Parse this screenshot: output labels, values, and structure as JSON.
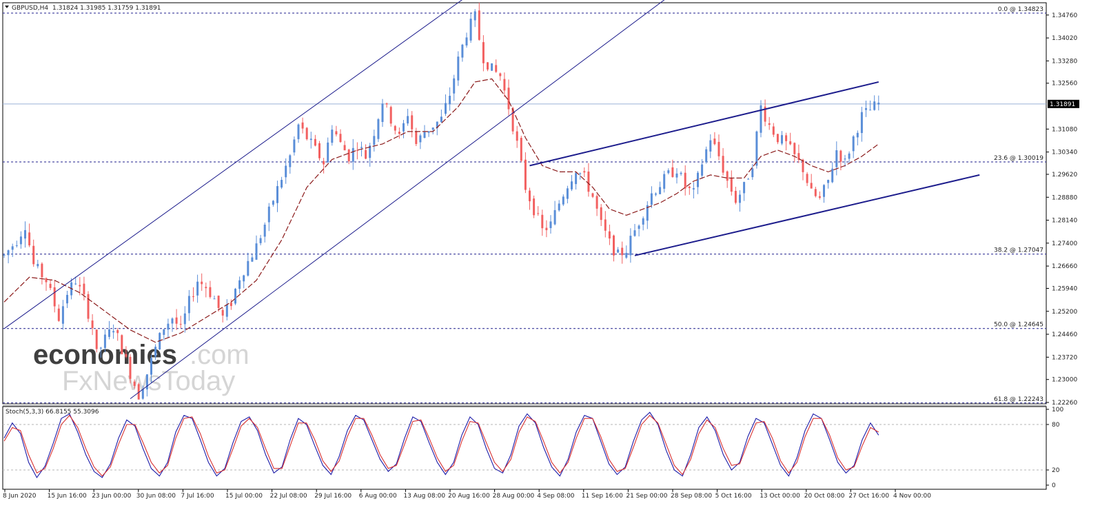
{
  "header": {
    "symbol": "GBPUSD,H4",
    "ohlc": "1.31824 1.31985 1.31759 1.31891"
  },
  "watermark": {
    "part1": "economies",
    "part2": ".com",
    "part3": "FxNewsToday",
    "accent_color": "#f5a05a"
  },
  "chart_data": [
    {
      "type": "candlestick",
      "title": "GBPUSD,H4",
      "ylim": [
        1.2226,
        1.348
      ],
      "y_ticks": [
        "1.34760",
        "1.34020",
        "1.33280",
        "1.32560",
        "1.31080",
        "1.30340",
        "1.29620",
        "1.28880",
        "1.28140",
        "1.27400",
        "1.26660",
        "1.25940",
        "1.25200",
        "1.24460",
        "1.23720",
        "1.23000",
        "1.22260"
      ],
      "x_ticks": [
        "8 Jun 2020",
        "15 Jun 16:00",
        "23 Jun 00:00",
        "30 Jun 08:00",
        "7 Jul 16:00",
        "15 Jul 00:00",
        "22 Jul 08:00",
        "29 Jul 16:00",
        "6 Aug 00:00",
        "13 Aug 08:00",
        "20 Aug 16:00",
        "28 Aug 00:00",
        "4 Sep 08:00",
        "11 Sep 16:00",
        "21 Sep 00:00",
        "28 Sep 08:00",
        "5 Oct 16:00",
        "13 Oct 00:00",
        "20 Oct 08:00",
        "27 Oct 16:00",
        "4 Nov 00:00"
      ],
      "current_price_label": "1.31891",
      "current_price": 1.31891,
      "price_path": [
        [
          0,
          1.27
        ],
        [
          3,
          1.275
        ],
        [
          5,
          1.28
        ],
        [
          7,
          1.267
        ],
        [
          10,
          1.262
        ],
        [
          13,
          1.25
        ],
        [
          15,
          1.258
        ],
        [
          17,
          1.262
        ],
        [
          19,
          1.256
        ],
        [
          21,
          1.247
        ],
        [
          22,
          1.238
        ],
        [
          24,
          1.243
        ],
        [
          26,
          1.247
        ],
        [
          28,
          1.24
        ],
        [
          30,
          1.232
        ],
        [
          32,
          1.225
        ],
        [
          34,
          1.232
        ],
        [
          36,
          1.24
        ],
        [
          38,
          1.247
        ],
        [
          40,
          1.25
        ],
        [
          42,
          1.246
        ],
        [
          44,
          1.255
        ],
        [
          46,
          1.262
        ],
        [
          48,
          1.26
        ],
        [
          50,
          1.256
        ],
        [
          52,
          1.25
        ],
        [
          54,
          1.255
        ],
        [
          56,
          1.263
        ],
        [
          58,
          1.268
        ],
        [
          60,
          1.273
        ],
        [
          62,
          1.28
        ],
        [
          64,
          1.288
        ],
        [
          66,
          1.295
        ],
        [
          68,
          1.302
        ],
        [
          70,
          1.312
        ],
        [
          72,
          1.308
        ],
        [
          74,
          1.304
        ],
        [
          76,
          1.3
        ],
        [
          78,
          1.312
        ],
        [
          80,
          1.306
        ],
        [
          82,
          1.302
        ],
        [
          84,
          1.306
        ],
        [
          86,
          1.302
        ],
        [
          88,
          1.31
        ],
        [
          90,
          1.32
        ],
        [
          92,
          1.314
        ],
        [
          94,
          1.308
        ],
        [
          96,
          1.316
        ],
        [
          98,
          1.306
        ],
        [
          100,
          1.31
        ],
        [
          102,
          1.312
        ],
        [
          104,
          1.314
        ],
        [
          106,
          1.322
        ],
        [
          108,
          1.333
        ],
        [
          110,
          1.342
        ],
        [
          112,
          1.347
        ],
        [
          113,
          1.34
        ],
        [
          114,
          1.334
        ],
        [
          116,
          1.33
        ],
        [
          118,
          1.328
        ],
        [
          120,
          1.318
        ],
        [
          122,
          1.306
        ],
        [
          124,
          1.292
        ],
        [
          126,
          1.285
        ],
        [
          128,
          1.278
        ],
        [
          130,
          1.28
        ],
        [
          132,
          1.287
        ],
        [
          134,
          1.293
        ],
        [
          136,
          1.298
        ],
        [
          138,
          1.295
        ],
        [
          140,
          1.289
        ],
        [
          142,
          1.28
        ],
        [
          144,
          1.274
        ],
        [
          146,
          1.27
        ],
        [
          148,
          1.272
        ],
        [
          150,
          1.278
        ],
        [
          152,
          1.284
        ],
        [
          154,
          1.29
        ],
        [
          156,
          1.293
        ],
        [
          158,
          1.296
        ],
        [
          160,
          1.298
        ],
        [
          162,
          1.292
        ],
        [
          164,
          1.29
        ],
        [
          166,
          1.3
        ],
        [
          168,
          1.308
        ],
        [
          170,
          1.302
        ],
        [
          172,
          1.294
        ],
        [
          174,
          1.288
        ],
        [
          176,
          1.292
        ],
        [
          178,
          1.3
        ],
        [
          180,
          1.318
        ],
        [
          182,
          1.312
        ],
        [
          184,
          1.308
        ],
        [
          186,
          1.306
        ],
        [
          188,
          1.302
        ],
        [
          190,
          1.298
        ],
        [
          192,
          1.29
        ],
        [
          194,
          1.288
        ],
        [
          196,
          1.294
        ],
        [
          198,
          1.304
        ],
        [
          200,
          1.3
        ],
        [
          202,
          1.308
        ],
        [
          204,
          1.315
        ],
        [
          206,
          1.317
        ],
        [
          208,
          1.319
        ]
      ],
      "moving_average_path": [
        [
          0,
          1.255
        ],
        [
          6,
          1.263
        ],
        [
          12,
          1.262
        ],
        [
          18,
          1.258
        ],
        [
          24,
          1.252
        ],
        [
          30,
          1.246
        ],
        [
          36,
          1.242
        ],
        [
          42,
          1.245
        ],
        [
          48,
          1.25
        ],
        [
          54,
          1.255
        ],
        [
          60,
          1.262
        ],
        [
          66,
          1.275
        ],
        [
          72,
          1.292
        ],
        [
          78,
          1.301
        ],
        [
          84,
          1.304
        ],
        [
          90,
          1.306
        ],
        [
          96,
          1.31
        ],
        [
          102,
          1.31
        ],
        [
          108,
          1.318
        ],
        [
          112,
          1.326
        ],
        [
          116,
          1.327
        ],
        [
          120,
          1.32
        ],
        [
          124,
          1.308
        ],
        [
          128,
          1.299
        ],
        [
          132,
          1.297
        ],
        [
          136,
          1.297
        ],
        [
          140,
          1.292
        ],
        [
          144,
          1.285
        ],
        [
          148,
          1.283
        ],
        [
          152,
          1.285
        ],
        [
          156,
          1.287
        ],
        [
          160,
          1.29
        ],
        [
          164,
          1.294
        ],
        [
          168,
          1.296
        ],
        [
          172,
          1.295
        ],
        [
          176,
          1.295
        ],
        [
          180,
          1.302
        ],
        [
          184,
          1.304
        ],
        [
          188,
          1.302
        ],
        [
          192,
          1.299
        ],
        [
          196,
          1.297
        ],
        [
          200,
          1.299
        ],
        [
          204,
          1.302
        ],
        [
          208,
          1.306
        ]
      ],
      "fibonacci_levels": [
        {
          "label": "0.0 @ 1.34823",
          "price": 1.34823
        },
        {
          "label": "23.6 @ 1.30019",
          "price": 1.30019
        },
        {
          "label": "38.2 @ 1.27047",
          "price": 1.27047
        },
        {
          "label": "50.0 @ 1.24645",
          "price": 1.24645
        },
        {
          "label": "61.8 @ 1.22243",
          "price": 1.22243
        }
      ],
      "trend_lines": [
        {
          "from": [
            0,
            1.2464
          ],
          "to": [
            112,
            1.3555
          ]
        },
        {
          "from": [
            30,
            1.2238
          ],
          "to": [
            160,
            1.3555
          ]
        },
        {
          "from": [
            125,
            1.299
          ],
          "to": [
            208,
            1.326
          ]
        },
        {
          "from": [
            150,
            1.27
          ],
          "to": [
            232,
            1.296
          ]
        }
      ],
      "candle_color_up": "#5a8ed8",
      "candle_color_down": "#f26060",
      "ma_color": "#8b1a1a",
      "level_color": "#1c1c8c"
    },
    {
      "type": "line",
      "title": "Stoch(5,3,3) 66.8155 55.3096",
      "ylim": [
        0,
        100
      ],
      "y_ticks": [
        "100",
        "80",
        "20",
        "0"
      ],
      "levels": [
        80,
        20
      ],
      "series": [
        {
          "color": "#1a1aa8",
          "values": [
            62,
            82,
            68,
            30,
            10,
            25,
            55,
            88,
            94,
            70,
            40,
            18,
            10,
            28,
            62,
            86,
            78,
            48,
            22,
            12,
            30,
            70,
            92,
            88,
            60,
            30,
            12,
            22,
            56,
            84,
            90,
            72,
            40,
            16,
            24,
            60,
            88,
            80,
            52,
            26,
            14,
            38,
            72,
            92,
            86,
            60,
            34,
            18,
            28,
            62,
            90,
            84,
            56,
            30,
            14,
            30,
            66,
            90,
            80,
            48,
            22,
            16,
            40,
            78,
            94,
            82,
            50,
            24,
            12,
            34,
            70,
            92,
            88,
            58,
            28,
            14,
            24,
            58,
            86,
            96,
            80,
            46,
            20,
            12,
            40,
            76,
            90,
            72,
            40,
            20,
            30,
            64,
            88,
            82,
            54,
            26,
            12,
            36,
            72,
            94,
            88,
            60,
            30,
            16,
            26,
            60,
            82,
            66
          ]
        },
        {
          "color": "#d83030",
          "values": [
            58,
            76,
            72,
            40,
            16,
            22,
            48,
            80,
            92,
            76,
            48,
            24,
            12,
            24,
            54,
            80,
            80,
            56,
            30,
            16,
            26,
            62,
            88,
            90,
            68,
            38,
            16,
            20,
            48,
            78,
            88,
            76,
            48,
            22,
            22,
            52,
            82,
            82,
            60,
            32,
            18,
            32,
            64,
            88,
            88,
            66,
            40,
            22,
            26,
            54,
            84,
            86,
            62,
            36,
            18,
            26,
            58,
            84,
            82,
            56,
            30,
            18,
            34,
            70,
            90,
            84,
            58,
            30,
            16,
            30,
            62,
            88,
            88,
            64,
            34,
            18,
            22,
            50,
            80,
            92,
            82,
            54,
            26,
            14,
            34,
            68,
            86,
            76,
            48,
            26,
            28,
            56,
            82,
            84,
            62,
            32,
            16,
            30,
            64,
            88,
            88,
            66,
            36,
            20,
            24,
            52,
            76,
            70
          ]
        }
      ]
    }
  ]
}
